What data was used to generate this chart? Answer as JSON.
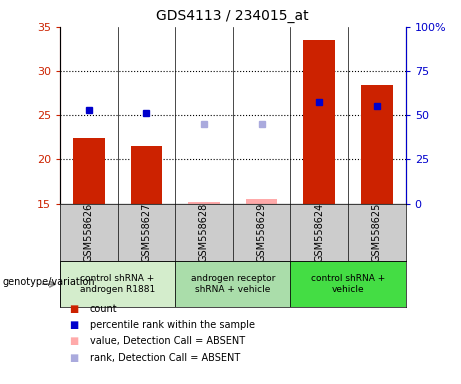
{
  "title": "GDS4113 / 234015_at",
  "samples": [
    "GSM558626",
    "GSM558627",
    "GSM558628",
    "GSM558629",
    "GSM558624",
    "GSM558625"
  ],
  "groups": [
    {
      "label": "control shRNA +\nandrogen R1881",
      "color": "#d4edcc",
      "samples": [
        0,
        1
      ]
    },
    {
      "label": "androgen receptor\nshRNA + vehicle",
      "color": "#aaddaa",
      "samples": [
        2,
        3
      ]
    },
    {
      "label": "control shRNA +\nvehicle",
      "color": "#44dd44",
      "samples": [
        4,
        5
      ]
    }
  ],
  "bar_values": [
    22.4,
    21.5,
    null,
    null,
    33.5,
    28.4
  ],
  "bar_color": "#cc2200",
  "blue_square_values": [
    25.6,
    25.3,
    null,
    null,
    26.5,
    26.0
  ],
  "blue_square_color": "#0000cc",
  "pink_bar_values": [
    null,
    null,
    15.2,
    15.5,
    null,
    null
  ],
  "pink_bar_color": "#ffaaaa",
  "lavender_square_values": [
    null,
    null,
    24.0,
    24.0,
    null,
    null
  ],
  "lavender_square_color": "#aaaadd",
  "ylim_left": [
    15,
    35
  ],
  "ylim_right": [
    0,
    100
  ],
  "yticks_left": [
    15,
    20,
    25,
    30,
    35
  ],
  "yticks_right": [
    0,
    25,
    50,
    75,
    100
  ],
  "ytick_labels_right": [
    "0",
    "25",
    "50",
    "75",
    "100%"
  ],
  "left_axis_color": "#cc2200",
  "right_axis_color": "#0000cc",
  "hlines": [
    20,
    25,
    30
  ],
  "bg_color": "#ffffff",
  "plot_bg_color": "#ffffff",
  "sample_label_bg": "#cccccc",
  "legend_items": [
    {
      "label": "count",
      "color": "#cc2200"
    },
    {
      "label": "percentile rank within the sample",
      "color": "#0000cc"
    },
    {
      "label": "value, Detection Call = ABSENT",
      "color": "#ffaaaa"
    },
    {
      "label": "rank, Detection Call = ABSENT",
      "color": "#aaaadd"
    }
  ],
  "genotype_label": "genotype/variation"
}
